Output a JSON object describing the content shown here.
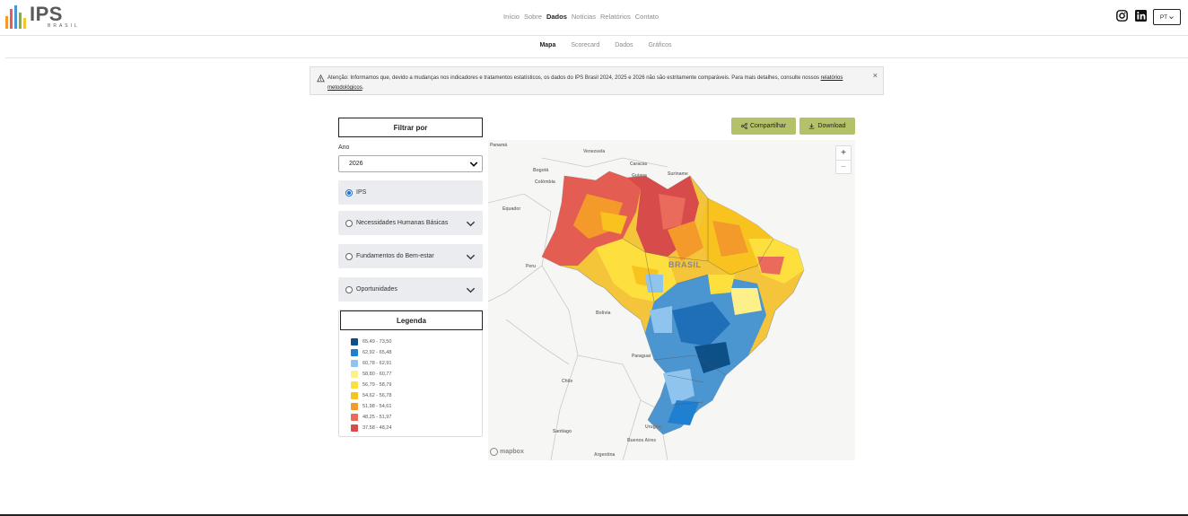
{
  "brand": {
    "name": "IPS",
    "sub": "BRASIL",
    "bar_colors": [
      "#f39a2b",
      "#e35d5d",
      "#4b95d1",
      "#7cb342",
      "#f5c531"
    ]
  },
  "nav": {
    "items": [
      "Início",
      "Sobre",
      "Dados",
      "Notícias",
      "Relatórios",
      "Contato"
    ],
    "active": "Dados"
  },
  "lang": {
    "value": "PT"
  },
  "subnav": {
    "items": [
      "Mapa",
      "Scorecard",
      "Dados",
      "Gráficos"
    ],
    "active": "Mapa"
  },
  "alert": {
    "text": "Atenção: Informamos que, devido a mudanças nos indicadores e tratamentos estatísticos, os dados do IPS Brasil 2024, 2025 e 2026 não são estritamente comparáveis. Para mais detalhes, consulte nossos",
    "link": "relatórios metodológicos",
    "close": "×"
  },
  "filter": {
    "title": "Filtrar por",
    "year_label": "Ano",
    "year_value": "2026",
    "options": [
      {
        "label": "IPS",
        "checked": true,
        "expandable": false
      },
      {
        "label": "Necessidades Humanas Básicas",
        "checked": false,
        "expandable": true
      },
      {
        "label": "Fundamentos do Bem-estar",
        "checked": false,
        "expandable": true
      },
      {
        "label": "Oportunidades",
        "checked": false,
        "expandable": true
      }
    ]
  },
  "legend": {
    "title": "Legenda",
    "items": [
      {
        "range": "65,49 - 73,50",
        "color": "#0d4f87"
      },
      {
        "range": "62,92 - 65,48",
        "color": "#1f7fd0"
      },
      {
        "range": "60,78 - 62,91",
        "color": "#8ec4ee"
      },
      {
        "range": "58,80 - 60,77",
        "color": "#fdf08a"
      },
      {
        "range": "56,79 - 58,79",
        "color": "#fddf3d"
      },
      {
        "range": "54,62 - 56,78",
        "color": "#f8c21f"
      },
      {
        "range": "51,98 - 54,61",
        "color": "#f39a2b"
      },
      {
        "range": "48,25 - 51,97",
        "color": "#ea6a5c"
      },
      {
        "range": "37,58 - 48,24",
        "color": "#d84b4b"
      }
    ]
  },
  "actions": {
    "share": "Compartilhar",
    "download": "Download"
  },
  "map": {
    "labels": {
      "country": "BRASIL",
      "places": [
        "Panamá",
        "Venezuela",
        "Bogotá",
        "Colômbia",
        "Caracas",
        "Equador",
        "Peru",
        "Bolívia",
        "Chile",
        "Paraguai",
        "Santiago",
        "Buenos Aires",
        "Argentina",
        "Uruguai",
        "Suriname",
        "Guiana"
      ]
    },
    "zoom_in": "+",
    "zoom_out": "−",
    "attribution": "mapbox"
  }
}
